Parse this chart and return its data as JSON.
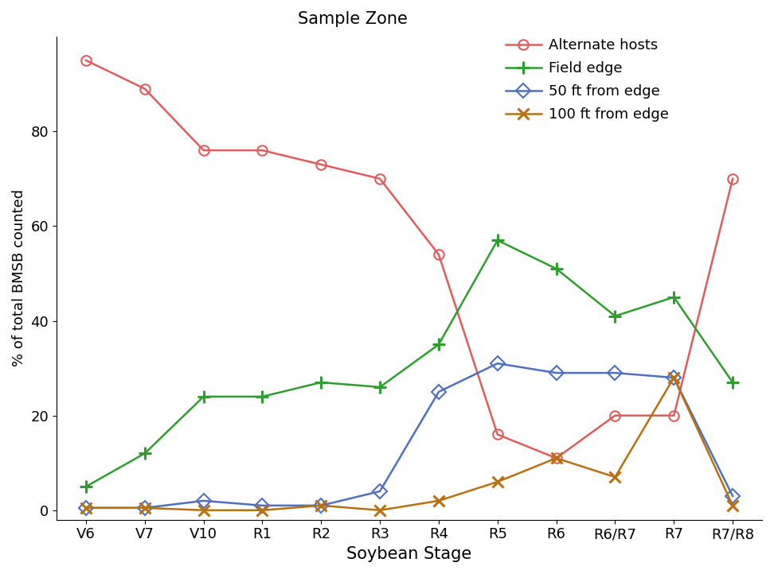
{
  "stages": [
    "V6",
    "V7",
    "V10",
    "R1",
    "R2",
    "R3",
    "R4",
    "R5",
    "R6",
    "R6/R7",
    "R7",
    "R7/R8"
  ],
  "alternate_hosts": [
    95,
    89,
    76,
    76,
    73,
    70,
    54,
    16,
    11,
    20,
    20,
    70
  ],
  "field_edge": [
    5,
    12,
    24,
    24,
    27,
    26,
    35,
    57,
    51,
    41,
    45,
    27
  ],
  "ft50": [
    0.5,
    0.5,
    2,
    1,
    1,
    4,
    25,
    31,
    29,
    29,
    28,
    3
  ],
  "ft100": [
    0.5,
    0.5,
    0,
    0,
    1,
    0,
    2,
    6,
    11,
    7,
    28,
    1
  ],
  "alternate_hosts_color": "#e05c5c",
  "field_edge_color": "#2e9e2e",
  "ft50_color": "#4f6fbf",
  "ft100_color": "#b87010",
  "title": "Sample Zone",
  "xlabel": "Soybean Stage",
  "ylabel": "% of total BMSB counted",
  "legend_labels": [
    "Alternate hosts",
    "Field edge",
    "50 ft from edge",
    "100 ft from edge"
  ],
  "ylim": [
    -2,
    100
  ],
  "yticks": [
    0,
    20,
    40,
    60,
    80
  ],
  "background_color": "#ffffff"
}
